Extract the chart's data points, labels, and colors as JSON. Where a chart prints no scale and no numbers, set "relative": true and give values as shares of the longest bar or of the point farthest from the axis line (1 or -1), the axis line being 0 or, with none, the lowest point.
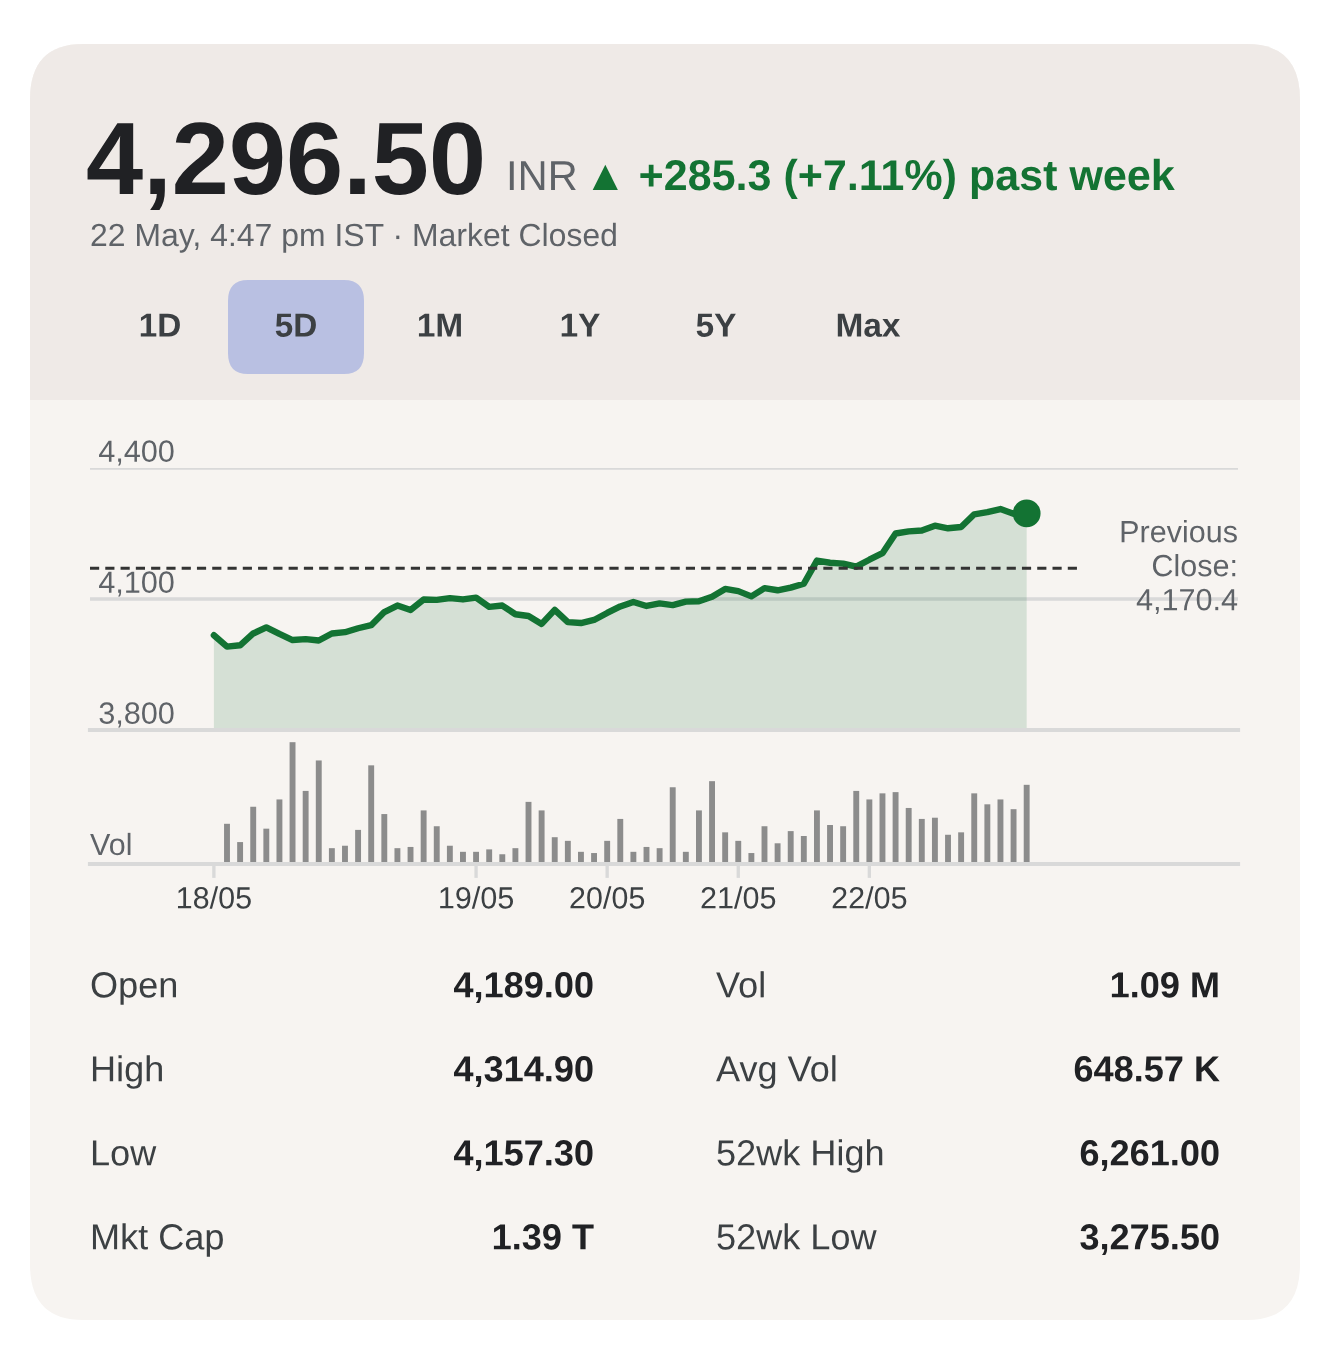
{
  "chart_data": [
    {
      "type": "other",
      "title": "4,296.50",
      "subtitle": "22 May, 4:47 pm IST · Market Closed",
      "annotations": [
        "INR",
        "▲ +285.3 (+7.11%) past week",
        "1D",
        "5D",
        "1M",
        "1Y",
        "5Y",
        "Max"
      ]
    },
    {
      "type": "area",
      "color": "#137333",
      "categories": [
        null,
        null,
        null,
        null,
        null,
        null,
        null,
        null,
        null,
        null,
        null,
        null,
        null,
        null,
        null,
        null,
        null,
        null,
        null,
        null,
        null,
        null,
        null,
        null,
        null,
        null,
        null,
        null,
        null,
        null,
        null,
        null,
        null,
        null,
        null,
        null,
        null,
        null,
        null,
        null,
        null,
        null,
        null,
        null,
        null,
        null,
        null,
        null,
        null,
        null,
        null,
        null,
        null,
        null,
        null,
        null,
        null,
        null,
        null,
        null,
        null,
        null,
        null
      ],
      "values": [
        4017,
        3991,
        3994,
        4021,
        4035,
        4020,
        4006,
        4008,
        4005,
        4021,
        4024,
        4033,
        4040,
        4070,
        4085,
        4075,
        4099,
        4098,
        4102,
        4099,
        4103,
        4082,
        4085,
        4065,
        4061,
        4043,
        4075,
        4047,
        4045,
        4052,
        4068,
        4083,
        4093,
        4084,
        4090,
        4086,
        4094,
        4095,
        4105,
        4123,
        4118,
        4106,
        4125,
        4120,
        4126,
        4135,
        4188,
        4183,
        4181,
        4174,
        4190,
        4205,
        4250,
        4255,
        4257,
        4268,
        4262,
        4265,
        4294,
        4299,
        4306,
        4295,
        4296
      ],
      "ylim": [
        3800,
        4400
      ],
      "yticks": [
        {
          "value": 3800,
          "label": "3,800"
        },
        {
          "value": 4100,
          "label": "4,100"
        },
        {
          "value": 4400,
          "label": "4,400"
        }
      ],
      "grid": "y",
      "tick_labels": "y",
      "ref_lines": [
        {
          "axis": "y",
          "value": 4170.4,
          "label": "Previous Close: 4,170.4",
          "color": "#333333",
          "line_style": "dashed"
        }
      ]
    },
    {
      "type": "bar",
      "relative": true,
      "color": "#8c8c8c",
      "ylabel": "Vol",
      "tick_labels": "x",
      "categories": [
        "18/05",
        null,
        null,
        null,
        null,
        null,
        null,
        null,
        null,
        null,
        null,
        null,
        null,
        null,
        null,
        null,
        null,
        null,
        null,
        null,
        "19/05",
        null,
        null,
        null,
        null,
        null,
        null,
        null,
        null,
        null,
        "20/05",
        null,
        null,
        null,
        null,
        null,
        null,
        null,
        null,
        null,
        "21/05",
        null,
        null,
        null,
        null,
        null,
        null,
        null,
        null,
        null,
        "22/05",
        null,
        null,
        null,
        null,
        null,
        null,
        null,
        null,
        null,
        null,
        null,
        null
      ],
      "values": [
        null,
        0.33,
        0.18,
        0.47,
        0.29,
        0.53,
        1.0,
        0.6,
        0.85,
        0.13,
        0.15,
        0.28,
        0.81,
        0.41,
        0.13,
        0.14,
        0.44,
        0.31,
        0.15,
        0.1,
        0.1,
        0.12,
        0.08,
        0.13,
        0.51,
        0.44,
        0.22,
        0.19,
        0.1,
        0.09,
        0.19,
        0.37,
        0.1,
        0.14,
        0.13,
        0.63,
        0.1,
        0.44,
        0.68,
        0.26,
        0.19,
        0.09,
        0.31,
        0.17,
        0.27,
        0.23,
        0.44,
        0.32,
        0.31,
        0.6,
        0.53,
        0.58,
        0.59,
        0.46,
        0.37,
        0.38,
        0.24,
        0.26,
        0.58,
        0.49,
        0.53,
        0.45,
        0.65
      ]
    },
    {
      "type": "other",
      "annotations": [
        "Open",
        "4,189.00",
        "High",
        "4,314.90",
        "Low",
        "4,157.30",
        "Mkt Cap",
        "1.39 T",
        "Vol",
        "1.09 M",
        "Avg Vol",
        "648.57 K",
        "52wk High",
        "6,261.00",
        "52wk Low",
        "3,275.50"
      ]
    }
  ]
}
